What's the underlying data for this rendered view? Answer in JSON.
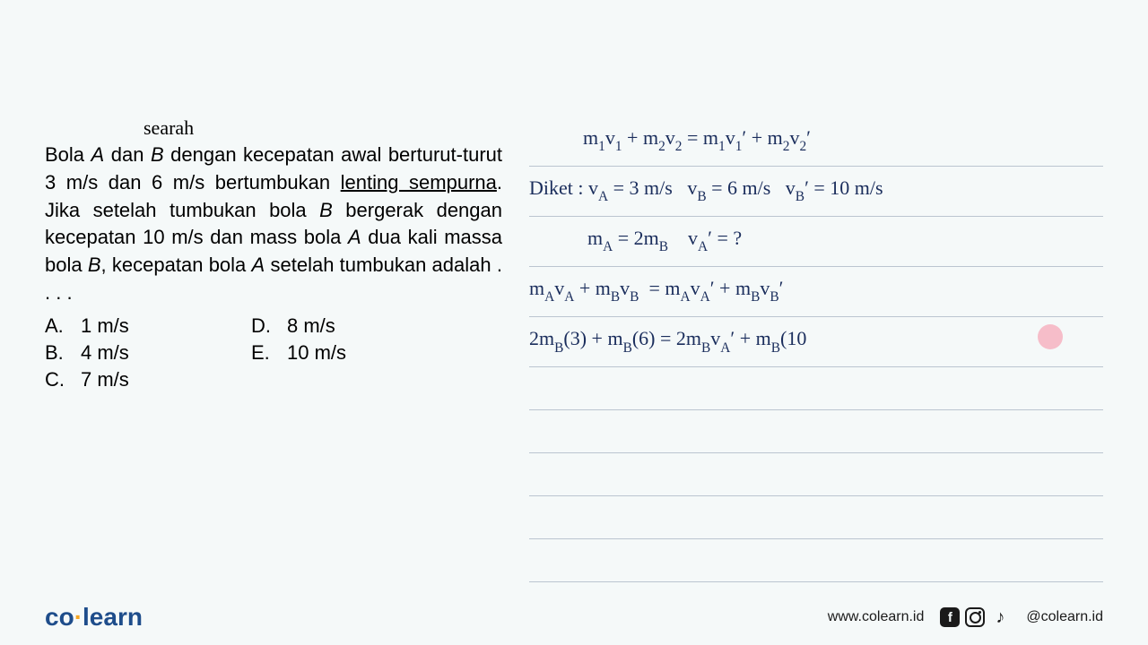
{
  "annotation": "searah",
  "problem": {
    "text_parts": {
      "p1": "Bola ",
      "p2": "A",
      "p3": " dan ",
      "p4": "B",
      "p5": " dengan kecepatan awal berturut-turut 3 m/s dan 6 m/s bertumbukan ",
      "p6": "lenting sempurna",
      "p7": ". Jika setelah tumbukan bola ",
      "p8": "B",
      "p9": " bergerak dengan kecepatan 10 m/s dan mass bola ",
      "p10": "A",
      "p11": " dua kali massa bola ",
      "p12": "B",
      "p13": ", kecepatan bola ",
      "p14": "A",
      "p15": " setelah tumbukan adalah . . . ."
    }
  },
  "options": {
    "a": {
      "letter": "A.",
      "value": "1 m/s"
    },
    "b": {
      "letter": "B.",
      "value": "4 m/s"
    },
    "c": {
      "letter": "C.",
      "value": "7 m/s"
    },
    "d": {
      "letter": "D.",
      "value": "8 m/s"
    },
    "e": {
      "letter": "E.",
      "value": "10 m/s"
    }
  },
  "work": {
    "line1": "m₁v₁ + m₂v₂ = m₁v₁′ + m₂v₂′",
    "line2": "Diket : vA = 3 m/s   vB = 6 m/s   vB′ = 10 m/s",
    "line3": "mA = 2mB    vA′ = ?",
    "line4": "mAvA + mBvB  = mAvA′ + mBvB′",
    "line5": "2mB(3) + mB(6) = 2mBvA′ + mB(10"
  },
  "footer": {
    "logo_co": "co",
    "logo_learn": "learn",
    "url": "www.colearn.id",
    "handle": "@colearn.id"
  },
  "colors": {
    "background": "#f5f9f9",
    "text": "#000000",
    "handwriting": "#1a2d5c",
    "rule_line": "#bbc5d0",
    "pointer_dot": "#f5a8b8",
    "logo_primary": "#1e4d8b",
    "logo_accent": "#f5a623"
  },
  "typography": {
    "problem_fontsize": 22,
    "handwriting_fontsize": 22,
    "logo_fontsize": 28,
    "footer_fontsize": 16
  }
}
